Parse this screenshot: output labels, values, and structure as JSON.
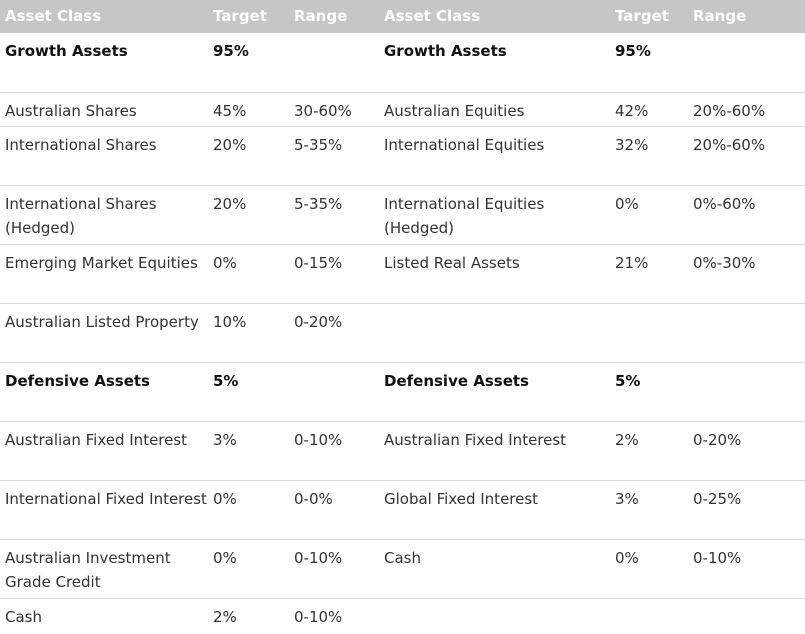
{
  "header": {
    "asset_class": "Asset Class",
    "target": "Target",
    "range": "Range",
    "asset_class_2": "Asset Class",
    "target_2": "Target",
    "range_2": "Range"
  },
  "rows": [
    {
      "a1": "Growth Assets",
      "t1": "95%",
      "r1": "",
      "a2": "Growth Assets",
      "t2": "95%",
      "r2": ""
    },
    {
      "a1": "Australian Shares",
      "t1": "45%",
      "r1": "30-60%",
      "a2": "Australian Equities",
      "t2": "42%",
      "r2": "20%-60%"
    },
    {
      "a1": "International Shares",
      "t1": "20%",
      "r1": "5-35%",
      "a2": "International Equities",
      "t2": "32%",
      "r2": "20%-60%"
    },
    {
      "a1": "International Shares (Hedged)",
      "t1": "20%",
      "r1": "5-35%",
      "a2": "International Equities (Hedged)",
      "t2": "0%",
      "r2": "0%-60%"
    },
    {
      "a1": "Emerging Market Equities",
      "t1": "0%",
      "r1": "0-15%",
      "a2": "Listed Real Assets",
      "t2": "21%",
      "r2": "0%-30%"
    },
    {
      "a1": "Australian Listed Property",
      "t1": "10%",
      "r1": "0-20%",
      "a2": "",
      "t2": "",
      "r2": ""
    },
    {
      "a1": "Defensive Assets",
      "t1": "5%",
      "r1": "",
      "a2": "Defensive Assets",
      "t2": "5%",
      "r2": ""
    },
    {
      "a1": "Australian Fixed Interest",
      "t1": "3%",
      "r1": "0-10%",
      "a2": "Australian Fixed Interest",
      "t2": "2%",
      "r2": "0-20%"
    },
    {
      "a1": "International Fixed Interest",
      "t1": "0%",
      "r1": "0-0%",
      "a2": "Global Fixed Interest",
      "t2": "3%",
      "r2": "0-25%"
    },
    {
      "a1": "Australian Investment Grade Credit",
      "t1": "0%",
      "r1": "0-10%",
      "a2": "Cash",
      "t2": "0%",
      "r2": "0-10%"
    },
    {
      "a1": "Cash",
      "t1": "2%",
      "r1": "0-10%",
      "a2": "",
      "t2": "",
      "r2": ""
    }
  ]
}
